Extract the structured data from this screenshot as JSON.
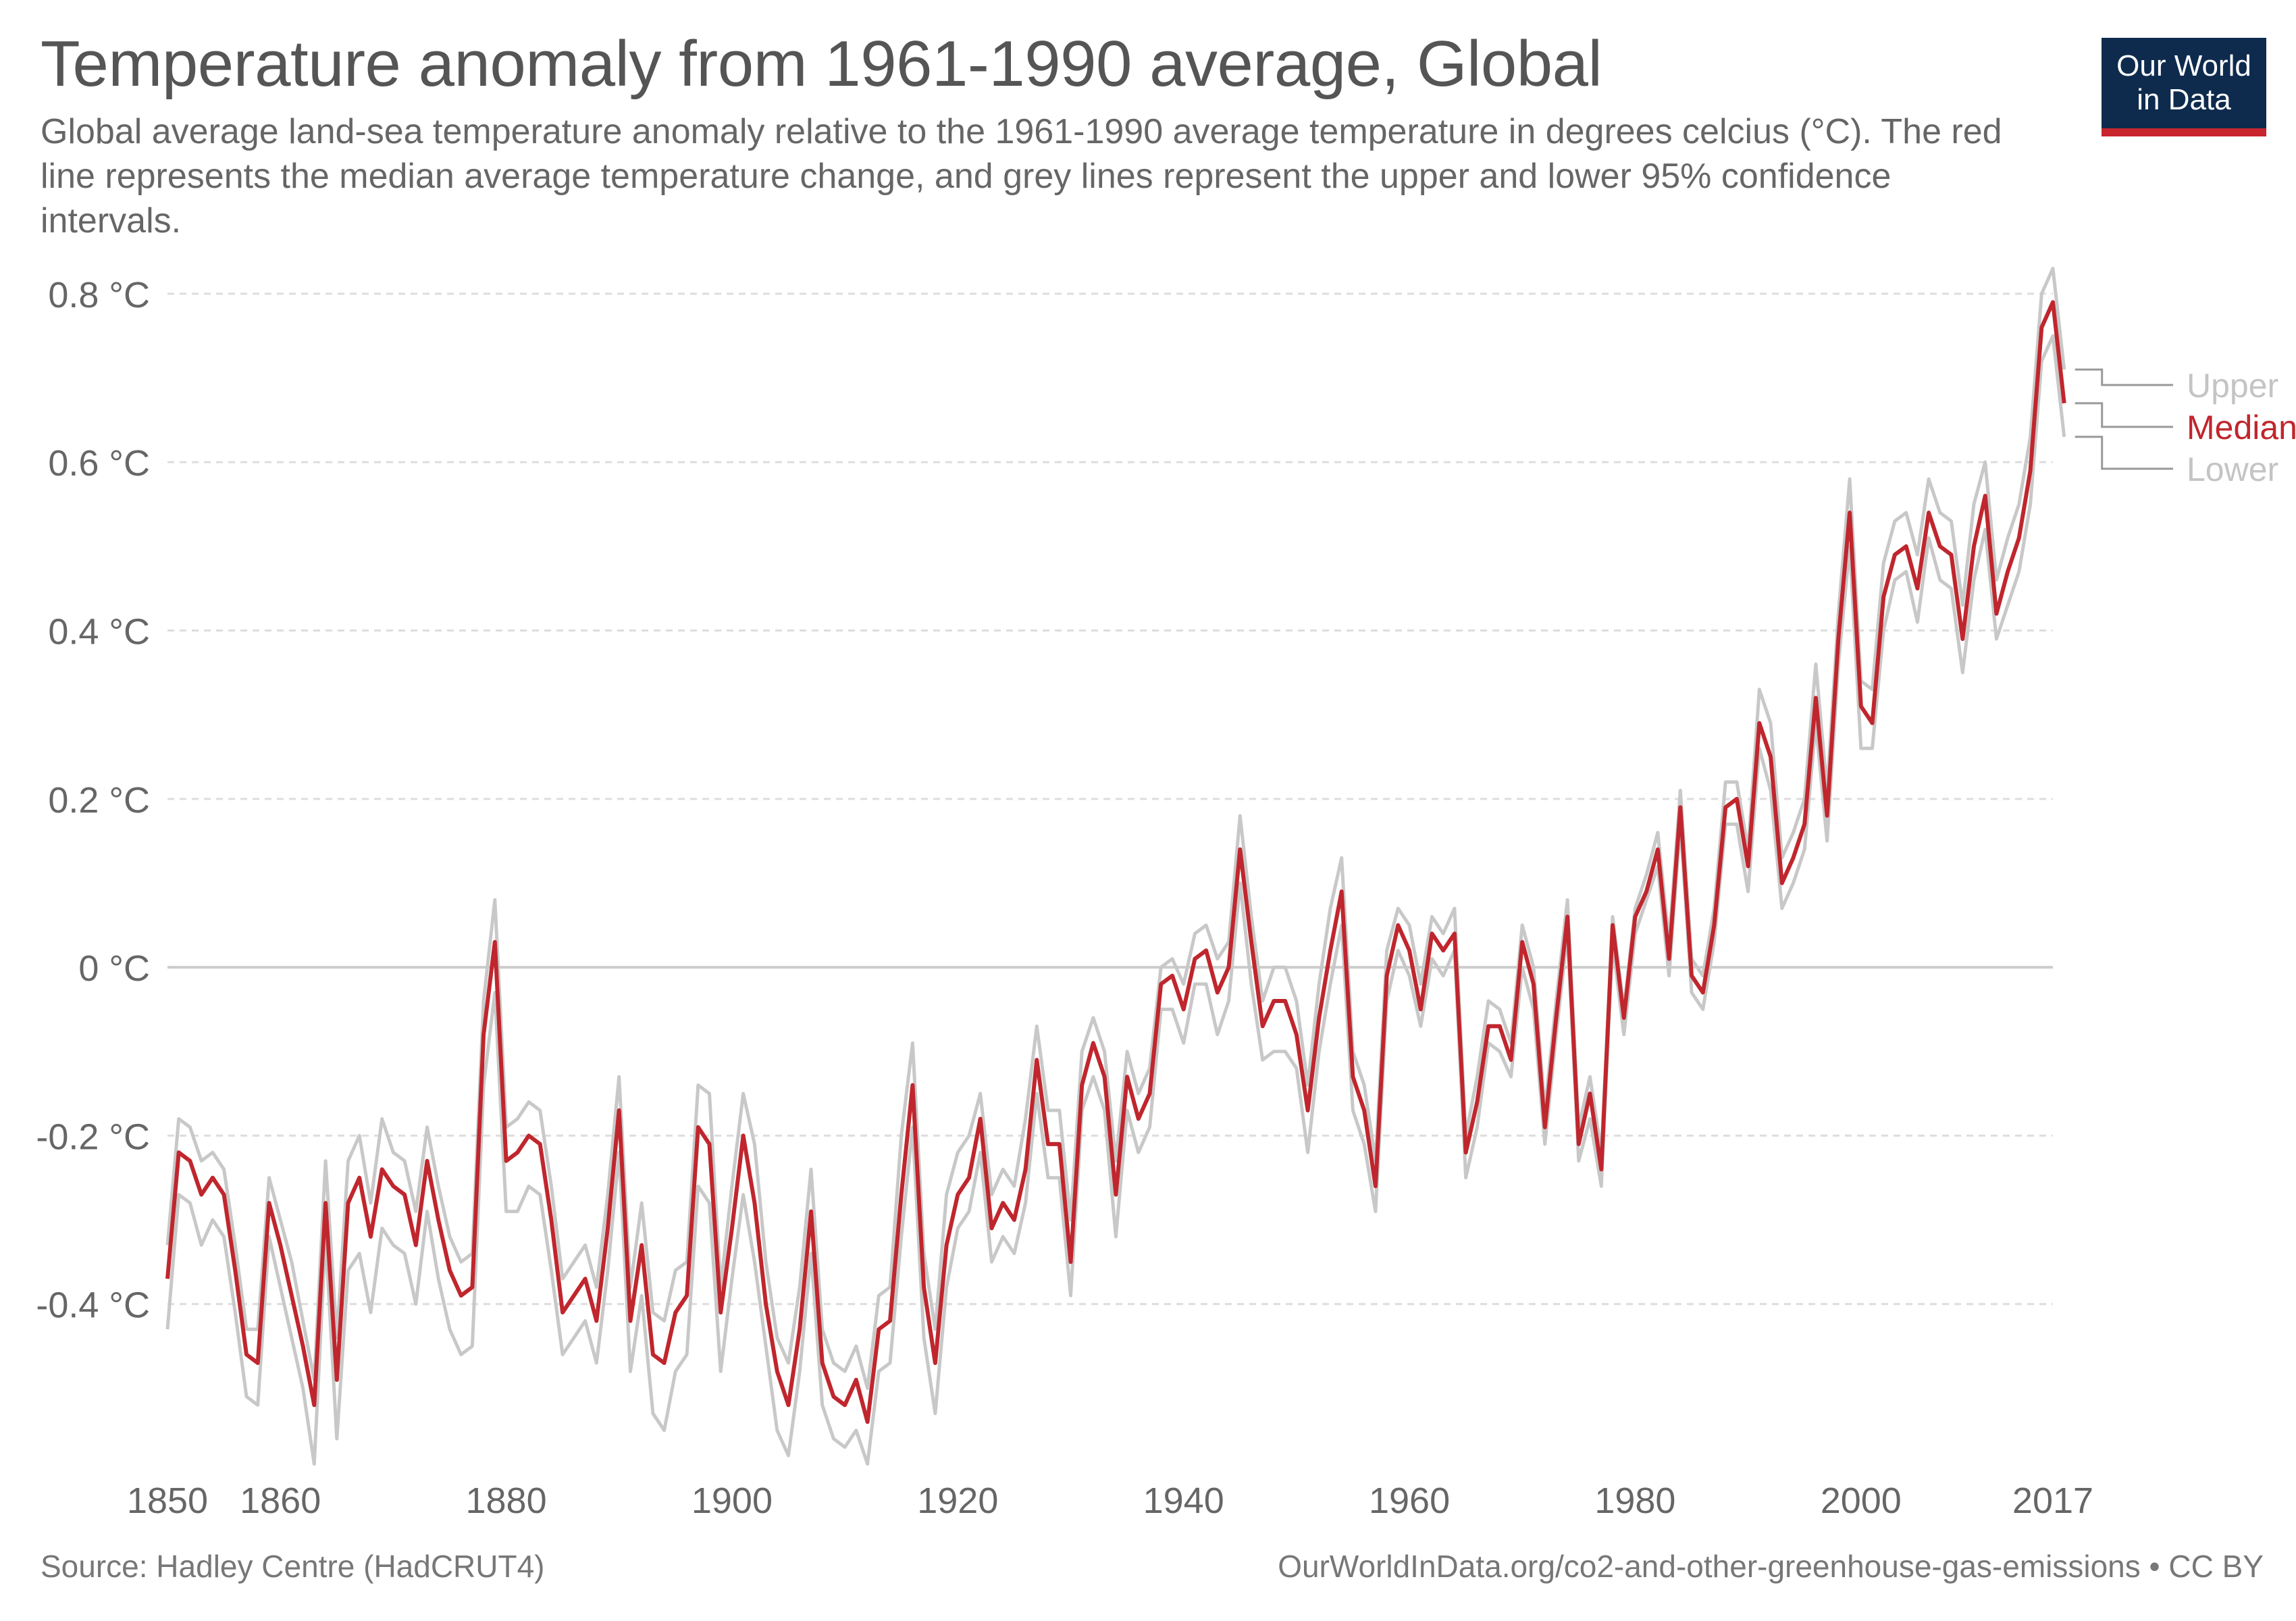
{
  "header": {
    "title": "Temperature anomaly from 1961-1990 average, Global",
    "subtitle": "Global average land-sea temperature anomaly relative to the 1961-1990 average temperature in degrees celcius (°C). The red line represents the median average temperature change, and grey lines represent the upper and lower 95% confidence intervals.",
    "logo_line1": "Our World",
    "logo_line2": "in Data"
  },
  "footer": {
    "source": "Source: Hadley Centre (HadCRUT4)",
    "url": "OurWorldInData.org/co2-and-other-greenhouse-gas-emissions • CC BY"
  },
  "colors": {
    "median": "#c0262d",
    "bounds": "#c8c8c8",
    "brand_navy": "#0e2b4e",
    "brand_red": "#c8252e"
  },
  "chart_data": {
    "type": "line",
    "title": "Temperature anomaly from 1961-1990 average, Global",
    "ylim": [
      -0.6,
      0.82
    ],
    "xlim": [
      1850,
      2017
    ],
    "y_ticks": [
      {
        "value": 0.8,
        "label": "0.8 °C"
      },
      {
        "value": 0.6,
        "label": "0.6 °C"
      },
      {
        "value": 0.4,
        "label": "0.4 °C"
      },
      {
        "value": 0.2,
        "label": "0.2 °C"
      },
      {
        "value": 0,
        "label": "0 °C"
      },
      {
        "value": -0.2,
        "label": "-0.2 °C"
      },
      {
        "value": -0.4,
        "label": "-0.4 °C"
      }
    ],
    "x_ticks": [
      {
        "value": 1850,
        "label": "1850"
      },
      {
        "value": 1860,
        "label": "1860"
      },
      {
        "value": 1880,
        "label": "1880"
      },
      {
        "value": 1900,
        "label": "1900"
      },
      {
        "value": 1920,
        "label": "1920"
      },
      {
        "value": 1940,
        "label": "1940"
      },
      {
        "value": 1960,
        "label": "1960"
      },
      {
        "value": 1980,
        "label": "1980"
      },
      {
        "value": 2000,
        "label": "2000"
      },
      {
        "value": 2017,
        "label": "2017"
      }
    ],
    "grid": true,
    "legend_position": "right",
    "x_start": 1850,
    "series": [
      {
        "name": "Median",
        "values": [
          -0.37,
          -0.22,
          -0.23,
          -0.27,
          -0.25,
          -0.27,
          -0.36,
          -0.46,
          -0.47,
          -0.28,
          -0.33,
          -0.39,
          -0.45,
          -0.52,
          -0.28,
          -0.49,
          -0.28,
          -0.25,
          -0.32,
          -0.24,
          -0.26,
          -0.27,
          -0.33,
          -0.23,
          -0.3,
          -0.36,
          -0.39,
          -0.38,
          -0.08,
          0.03,
          -0.23,
          -0.22,
          -0.2,
          -0.21,
          -0.3,
          -0.41,
          -0.39,
          -0.37,
          -0.42,
          -0.31,
          -0.17,
          -0.42,
          -0.33,
          -0.46,
          -0.47,
          -0.41,
          -0.39,
          -0.19,
          -0.21,
          -0.41,
          -0.31,
          -0.2,
          -0.28,
          -0.4,
          -0.48,
          -0.52,
          -0.43,
          -0.29,
          -0.47,
          -0.51,
          -0.52,
          -0.49,
          -0.54,
          -0.43,
          -0.42,
          -0.27,
          -0.14,
          -0.38,
          -0.47,
          -0.33,
          -0.27,
          -0.25,
          -0.18,
          -0.31,
          -0.28,
          -0.3,
          -0.24,
          -0.11,
          -0.21,
          -0.21,
          -0.35,
          -0.14,
          -0.09,
          -0.13,
          -0.27,
          -0.13,
          -0.18,
          -0.15,
          -0.02,
          -0.01,
          -0.05,
          0.01,
          0.02,
          -0.03,
          0.0,
          0.14,
          0.03,
          -0.07,
          -0.04,
          -0.04,
          -0.08,
          -0.17,
          -0.06,
          0.02,
          0.09,
          -0.13,
          -0.17,
          -0.26,
          -0.01,
          0.05,
          0.02,
          -0.05,
          0.04,
          0.02,
          0.04,
          -0.22,
          -0.16,
          -0.07,
          -0.07,
          -0.11,
          0.03,
          -0.02,
          -0.19,
          -0.06,
          0.06,
          -0.21,
          -0.15,
          -0.24,
          0.05,
          -0.06,
          0.06,
          0.09,
          0.14,
          0.01,
          0.19,
          -0.01,
          -0.03,
          0.05,
          0.19,
          0.2,
          0.12,
          0.29,
          0.25,
          0.1,
          0.13,
          0.17,
          0.32,
          0.18,
          0.39,
          0.54,
          0.31,
          0.29,
          0.44,
          0.49,
          0.5,
          0.45,
          0.54,
          0.5,
          0.49,
          0.39,
          0.5,
          0.56,
          0.42,
          0.47,
          0.51,
          0.59,
          0.76,
          0.79,
          0.67
        ]
      },
      {
        "name": "Upper",
        "values": [
          -0.33,
          -0.18,
          -0.19,
          -0.23,
          -0.22,
          -0.24,
          -0.33,
          -0.43,
          -0.43,
          -0.25,
          -0.3,
          -0.35,
          -0.42,
          -0.49,
          -0.23,
          -0.44,
          -0.23,
          -0.2,
          -0.28,
          -0.18,
          -0.22,
          -0.23,
          -0.29,
          -0.19,
          -0.26,
          -0.32,
          -0.35,
          -0.34,
          -0.04,
          0.08,
          -0.19,
          -0.18,
          -0.16,
          -0.17,
          -0.26,
          -0.37,
          -0.35,
          -0.33,
          -0.38,
          -0.27,
          -0.13,
          -0.38,
          -0.28,
          -0.41,
          -0.42,
          -0.36,
          -0.35,
          -0.14,
          -0.15,
          -0.38,
          -0.26,
          -0.15,
          -0.21,
          -0.35,
          -0.44,
          -0.47,
          -0.38,
          -0.24,
          -0.43,
          -0.47,
          -0.48,
          -0.45,
          -0.5,
          -0.39,
          -0.38,
          -0.2,
          -0.09,
          -0.34,
          -0.43,
          -0.27,
          -0.22,
          -0.2,
          -0.15,
          -0.27,
          -0.24,
          -0.26,
          -0.18,
          -0.07,
          -0.17,
          -0.17,
          -0.3,
          -0.1,
          -0.06,
          -0.1,
          -0.23,
          -0.1,
          -0.15,
          -0.12,
          0.0,
          0.01,
          -0.02,
          0.04,
          0.05,
          0.01,
          0.03,
          0.18,
          0.06,
          -0.04,
          0.0,
          0.0,
          -0.04,
          -0.14,
          -0.02,
          0.07,
          0.13,
          -0.1,
          -0.14,
          -0.23,
          0.02,
          0.07,
          0.05,
          -0.02,
          0.06,
          0.04,
          0.07,
          -0.2,
          -0.13,
          -0.04,
          -0.05,
          -0.09,
          0.05,
          0.0,
          -0.17,
          -0.04,
          0.08,
          -0.19,
          -0.13,
          -0.22,
          0.06,
          -0.05,
          0.07,
          0.11,
          0.16,
          0.03,
          0.21,
          0.01,
          -0.01,
          0.07,
          0.22,
          0.22,
          0.14,
          0.33,
          0.29,
          0.13,
          0.16,
          0.2,
          0.36,
          0.21,
          0.42,
          0.58,
          0.34,
          0.33,
          0.48,
          0.53,
          0.54,
          0.49,
          0.58,
          0.54,
          0.53,
          0.43,
          0.55,
          0.6,
          0.46,
          0.51,
          0.55,
          0.63,
          0.8,
          0.83,
          0.71
        ]
      },
      {
        "name": "Lower",
        "values": [
          -0.43,
          -0.27,
          -0.28,
          -0.33,
          -0.3,
          -0.32,
          -0.41,
          -0.51,
          -0.52,
          -0.32,
          -0.38,
          -0.44,
          -0.5,
          -0.59,
          -0.32,
          -0.56,
          -0.36,
          -0.34,
          -0.41,
          -0.31,
          -0.33,
          -0.34,
          -0.4,
          -0.29,
          -0.37,
          -0.43,
          -0.46,
          -0.45,
          -0.14,
          -0.03,
          -0.29,
          -0.29,
          -0.26,
          -0.27,
          -0.36,
          -0.46,
          -0.44,
          -0.42,
          -0.47,
          -0.36,
          -0.22,
          -0.48,
          -0.39,
          -0.53,
          -0.55,
          -0.48,
          -0.46,
          -0.26,
          -0.28,
          -0.48,
          -0.37,
          -0.27,
          -0.35,
          -0.45,
          -0.55,
          -0.58,
          -0.48,
          -0.34,
          -0.52,
          -0.56,
          -0.57,
          -0.55,
          -0.59,
          -0.48,
          -0.47,
          -0.32,
          -0.19,
          -0.44,
          -0.53,
          -0.38,
          -0.31,
          -0.29,
          -0.22,
          -0.35,
          -0.32,
          -0.34,
          -0.28,
          -0.15,
          -0.25,
          -0.25,
          -0.39,
          -0.17,
          -0.13,
          -0.17,
          -0.32,
          -0.17,
          -0.22,
          -0.19,
          -0.05,
          -0.05,
          -0.09,
          -0.02,
          -0.02,
          -0.08,
          -0.04,
          0.1,
          -0.02,
          -0.11,
          -0.1,
          -0.1,
          -0.12,
          -0.22,
          -0.1,
          -0.02,
          0.05,
          -0.17,
          -0.21,
          -0.29,
          -0.04,
          0.02,
          -0.01,
          -0.07,
          0.01,
          -0.01,
          0.02,
          -0.25,
          -0.19,
          -0.09,
          -0.1,
          -0.13,
          0.0,
          -0.05,
          -0.21,
          -0.08,
          0.04,
          -0.23,
          -0.18,
          -0.26,
          0.03,
          -0.08,
          0.04,
          0.08,
          0.12,
          -0.01,
          0.17,
          -0.03,
          -0.05,
          0.03,
          0.17,
          0.17,
          0.09,
          0.26,
          0.21,
          0.07,
          0.1,
          0.14,
          0.29,
          0.15,
          0.36,
          0.5,
          0.26,
          0.26,
          0.4,
          0.46,
          0.47,
          0.41,
          0.51,
          0.46,
          0.45,
          0.35,
          0.46,
          0.52,
          0.39,
          0.43,
          0.47,
          0.55,
          0.72,
          0.75,
          0.63
        ]
      }
    ]
  }
}
